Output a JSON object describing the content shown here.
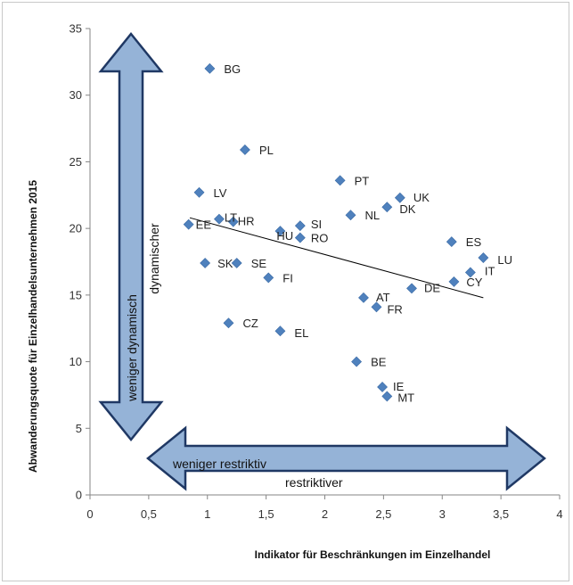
{
  "chart_data": {
    "type": "scatter",
    "xlabel": "Indikator für Beschränkungen im Einzelhandel",
    "ylabel": "Abwanderungsquote für Einzelhandelsunternehmen 2015",
    "xlim": [
      0,
      4
    ],
    "ylim": [
      0,
      35
    ],
    "xticks": [
      "0",
      "0,5",
      "1",
      "1,5",
      "2",
      "2,5",
      "3",
      "3,5",
      "4"
    ],
    "yticks": [
      "0",
      "5",
      "10",
      "15",
      "20",
      "25",
      "30",
      "35"
    ],
    "grid": false,
    "marker_color": "#4f81bd",
    "points": [
      {
        "label": "BG",
        "x": 1.02,
        "y": 32.0
      },
      {
        "label": "PL",
        "x": 1.32,
        "y": 25.9
      },
      {
        "label": "LV",
        "x": 0.93,
        "y": 22.7
      },
      {
        "label": "EE",
        "x": 0.84,
        "y": 20.3
      },
      {
        "label": "LT",
        "x": 1.1,
        "y": 20.7
      },
      {
        "label": "HR",
        "x": 1.22,
        "y": 20.5
      },
      {
        "label": "HU",
        "x": 1.62,
        "y": 19.8
      },
      {
        "label": "SI",
        "x": 1.79,
        "y": 20.2
      },
      {
        "label": "RO",
        "x": 1.79,
        "y": 19.3
      },
      {
        "label": "SK",
        "x": 0.98,
        "y": 17.4
      },
      {
        "label": "SE",
        "x": 1.25,
        "y": 17.4
      },
      {
        "label": "FI",
        "x": 1.52,
        "y": 16.3
      },
      {
        "label": "PT",
        "x": 2.13,
        "y": 23.6
      },
      {
        "label": "NL",
        "x": 2.22,
        "y": 21.0
      },
      {
        "label": "UK",
        "x": 2.64,
        "y": 22.3
      },
      {
        "label": "DK",
        "x": 2.53,
        "y": 21.6
      },
      {
        "label": "AT",
        "x": 2.33,
        "y": 14.8
      },
      {
        "label": "FR",
        "x": 2.44,
        "y": 14.1
      },
      {
        "label": "DE",
        "x": 2.74,
        "y": 15.5
      },
      {
        "label": "ES",
        "x": 3.08,
        "y": 19.0
      },
      {
        "label": "LU",
        "x": 3.35,
        "y": 17.8
      },
      {
        "label": "IT",
        "x": 3.24,
        "y": 16.7
      },
      {
        "label": "CY",
        "x": 3.1,
        "y": 16.0
      },
      {
        "label": "CZ",
        "x": 1.18,
        "y": 12.9
      },
      {
        "label": "EL",
        "x": 1.62,
        "y": 12.3
      },
      {
        "label": "BE",
        "x": 2.27,
        "y": 10.0
      },
      {
        "label": "IE",
        "x": 2.49,
        "y": 8.1
      },
      {
        "label": "MT",
        "x": 2.53,
        "y": 7.4
      }
    ],
    "trendline": {
      "x": [
        0.85,
        3.35
      ],
      "y": [
        20.8,
        14.8
      ]
    },
    "annotations": {
      "vertical_arrow_left": "weniger dynamisch",
      "vertical_arrow_right": "dynamischer",
      "horizontal_arrow_top": "weniger restriktiv",
      "horizontal_arrow_bottom": "restriktiver"
    }
  }
}
